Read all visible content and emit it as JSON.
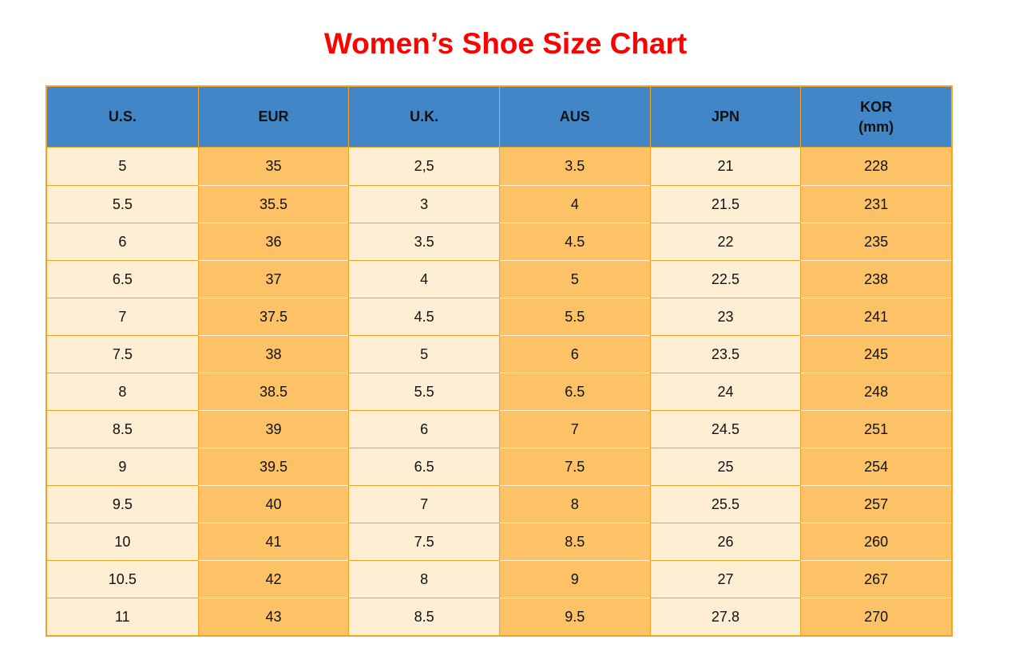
{
  "title": "Women’s Shoe Size Chart",
  "colors": {
    "title_red": "#fe0000",
    "header_blue": "#4186c7",
    "cell_cream": "#fdeed4",
    "cell_orange": "#fdc266",
    "border_orange": "#f3a226",
    "border_light": "#fdeed4",
    "text": "#111111"
  },
  "chart_data": {
    "type": "table",
    "title": "Women’s Shoe Size Chart",
    "columns": [
      {
        "key": "us",
        "label": "U.S.",
        "sublabel": ""
      },
      {
        "key": "eur",
        "label": "EUR",
        "sublabel": ""
      },
      {
        "key": "uk",
        "label": "U.K.",
        "sublabel": ""
      },
      {
        "key": "aus",
        "label": "AUS",
        "sublabel": ""
      },
      {
        "key": "jpn",
        "label": "JPN",
        "sublabel": ""
      },
      {
        "key": "kor",
        "label": "KOR",
        "sublabel": "(mm)"
      }
    ],
    "rows": [
      [
        "5",
        "35",
        "2,5",
        "3.5",
        "21",
        "228"
      ],
      [
        "5.5",
        "35.5",
        "3",
        "4",
        "21.5",
        "231"
      ],
      [
        "6",
        "36",
        "3.5",
        "4.5",
        "22",
        "235"
      ],
      [
        "6.5",
        "37",
        "4",
        "5",
        "22.5",
        "238"
      ],
      [
        "7",
        "37.5",
        "4.5",
        "5.5",
        "23",
        "241"
      ],
      [
        "7.5",
        "38",
        "5",
        "6",
        "23.5",
        "245"
      ],
      [
        "8",
        "38.5",
        "5.5",
        "6.5",
        "24",
        "248"
      ],
      [
        "8.5",
        "39",
        "6",
        "7",
        "24.5",
        "251"
      ],
      [
        "9",
        "39.5",
        "6.5",
        "7.5",
        "25",
        "254"
      ],
      [
        "9.5",
        "40",
        "7",
        "8",
        "25.5",
        "257"
      ],
      [
        "10",
        "41",
        "7.5",
        "8.5",
        "26",
        "260"
      ],
      [
        "10.5",
        "42",
        "8",
        "9",
        "27",
        "267"
      ],
      [
        "11",
        "43",
        "8.5",
        "9.5",
        "27.8",
        "270"
      ]
    ]
  }
}
